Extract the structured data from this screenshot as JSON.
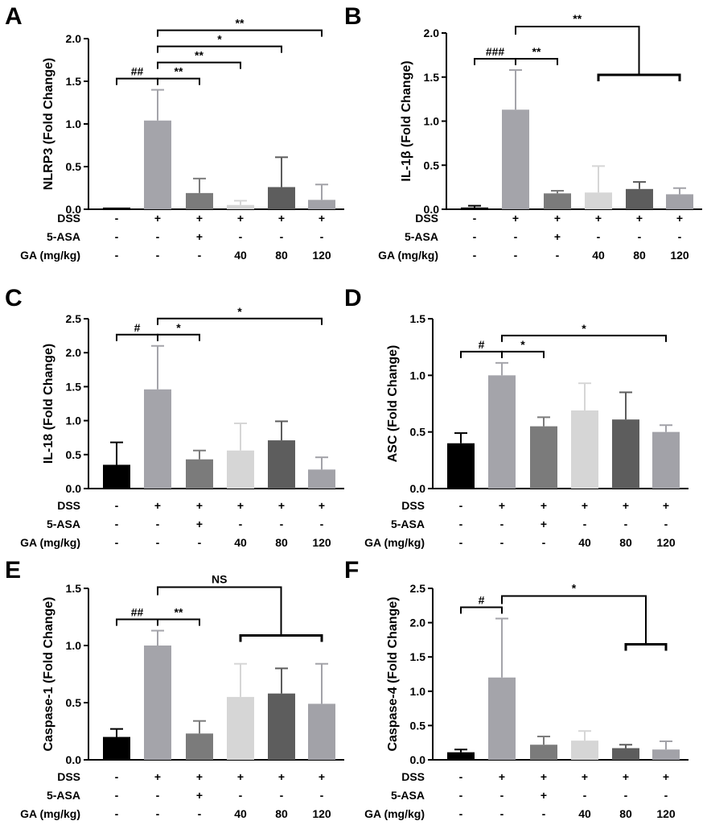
{
  "figure": {
    "row_labels": [
      "DSS",
      "5-ASA",
      "GA (mg/kg)"
    ],
    "conditions": [
      [
        "-",
        "+",
        "+",
        "+",
        "+",
        "+"
      ],
      [
        "-",
        "-",
        "+",
        "-",
        "-",
        "-"
      ],
      [
        "-",
        "-",
        "-",
        "40",
        "80",
        "120"
      ]
    ],
    "bar_colors": [
      "#000000",
      "#a4a4aa",
      "#7b7b7b",
      "#d6d6d6",
      "#5d5d5d",
      "#a2a2a8"
    ]
  },
  "chart_data": [
    {
      "panel": "A",
      "type": "bar",
      "ylabel": "NLRP3 (Fold Change)",
      "ylim": [
        0,
        2.0
      ],
      "yticks": [
        "0.0",
        "0.5",
        "1.0",
        "1.5",
        "2.0"
      ],
      "values": [
        0.02,
        1.04,
        0.19,
        0.05,
        0.26,
        0.11
      ],
      "errors": [
        0.0,
        0.36,
        0.17,
        0.05,
        0.35,
        0.18
      ],
      "comparisons": [
        {
          "from": 0,
          "to": 1,
          "label": "##"
        },
        {
          "from": 1,
          "to": 2,
          "label": "**"
        },
        {
          "from": 1,
          "to": 3,
          "label": "**"
        },
        {
          "from": 1,
          "to": 4,
          "label": "*"
        },
        {
          "from": 1,
          "to": 5,
          "label": "**"
        }
      ]
    },
    {
      "panel": "B",
      "type": "bar",
      "ylabel": "IL-1β (Fold Change)",
      "ylim": [
        0,
        2.0
      ],
      "yticks": [
        "0.0",
        "0.5",
        "1.0",
        "1.5",
        "2.0"
      ],
      "values": [
        0.02,
        1.13,
        0.18,
        0.19,
        0.23,
        0.17
      ],
      "errors": [
        0.02,
        0.45,
        0.03,
        0.3,
        0.08,
        0.07
      ],
      "comparisons": [
        {
          "from": 0,
          "to": 1,
          "label": "###"
        },
        {
          "from": 1,
          "to": 2,
          "label": "**"
        },
        {
          "from": 1,
          "group": [
            3,
            5
          ],
          "label": "**"
        }
      ]
    },
    {
      "panel": "C",
      "type": "bar",
      "ylabel": "IL-18 (Fold Change)",
      "ylim": [
        0,
        2.5
      ],
      "yticks": [
        "0.0",
        "0.5",
        "1.0",
        "1.5",
        "2.0",
        "2.5"
      ],
      "values": [
        0.35,
        1.46,
        0.43,
        0.56,
        0.71,
        0.28
      ],
      "errors": [
        0.33,
        0.64,
        0.13,
        0.4,
        0.28,
        0.18
      ],
      "comparisons": [
        {
          "from": 0,
          "to": 1,
          "label": "#"
        },
        {
          "from": 1,
          "to": 2,
          "label": "*"
        },
        {
          "from": 1,
          "to": 5,
          "label": "*"
        }
      ]
    },
    {
      "panel": "D",
      "type": "bar",
      "ylabel": "ASC (Fold Change)",
      "ylim": [
        0,
        1.5
      ],
      "yticks": [
        "0.0",
        "0.5",
        "1.0",
        "1.5"
      ],
      "values": [
        0.4,
        1.0,
        0.55,
        0.69,
        0.61,
        0.5
      ],
      "errors": [
        0.09,
        0.11,
        0.08,
        0.24,
        0.24,
        0.06
      ],
      "comparisons": [
        {
          "from": 0,
          "to": 1,
          "label": "#"
        },
        {
          "from": 1,
          "to": 2,
          "label": "*"
        },
        {
          "from": 1,
          "to": 5,
          "label": "*"
        }
      ]
    },
    {
      "panel": "E",
      "type": "bar",
      "ylabel": "Caspase-1 (Fold Change)",
      "ylim": [
        0,
        1.5
      ],
      "yticks": [
        "0.0",
        "0.5",
        "1.0",
        "1.5"
      ],
      "values": [
        0.2,
        1.0,
        0.23,
        0.55,
        0.58,
        0.49
      ],
      "errors": [
        0.07,
        0.13,
        0.11,
        0.29,
        0.22,
        0.35
      ],
      "comparisons": [
        {
          "from": 0,
          "to": 1,
          "label": "##"
        },
        {
          "from": 1,
          "to": 2,
          "label": "**"
        },
        {
          "from": 1,
          "group": [
            3,
            5
          ],
          "label": "NS"
        }
      ]
    },
    {
      "panel": "F",
      "type": "bar",
      "ylabel": "Caspase-4 (Fold Change)",
      "ylim": [
        0,
        2.5
      ],
      "yticks": [
        "0.0",
        "0.5",
        "1.0",
        "1.5",
        "2.0",
        "2.5"
      ],
      "values": [
        0.11,
        1.2,
        0.22,
        0.28,
        0.17,
        0.15
      ],
      "errors": [
        0.04,
        0.86,
        0.12,
        0.14,
        0.05,
        0.12
      ],
      "comparisons": [
        {
          "from": 0,
          "to": 1,
          "label": "#"
        },
        {
          "from": 1,
          "group": [
            4,
            5
          ],
          "label": "*"
        }
      ]
    }
  ]
}
